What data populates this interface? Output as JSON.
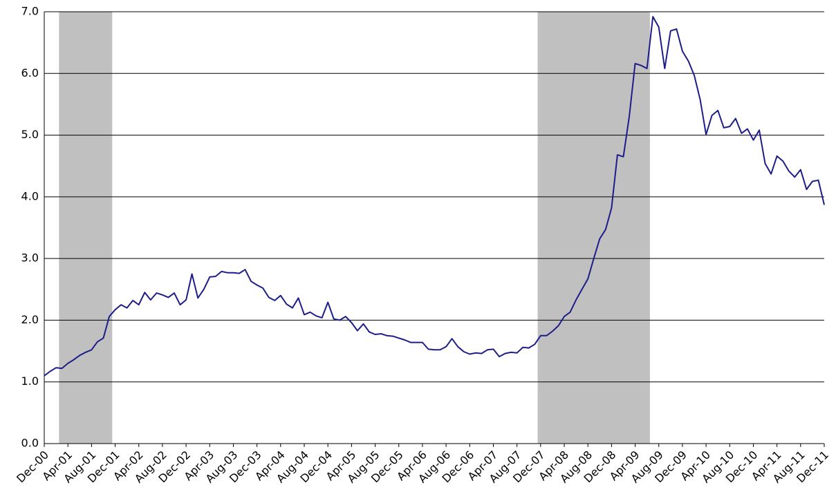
{
  "chart_data": {
    "type": "line",
    "categories": [
      "Dec-00",
      null,
      null,
      null,
      "Apr-01",
      null,
      null,
      null,
      "Aug-01",
      null,
      null,
      null,
      "Dec-01",
      null,
      null,
      null,
      "Apr-02",
      null,
      null,
      null,
      "Aug-02",
      null,
      null,
      null,
      "Dec-02",
      null,
      null,
      null,
      "Apr-03",
      null,
      null,
      null,
      "Aug-03",
      null,
      null,
      null,
      "Dec-03",
      null,
      null,
      null,
      "Apr-04",
      null,
      null,
      null,
      "Aug-04",
      null,
      null,
      null,
      "Dec-04",
      null,
      null,
      null,
      "Apr-05",
      null,
      null,
      null,
      "Aug-05",
      null,
      null,
      null,
      "Dec-05",
      null,
      null,
      null,
      "Apr-06",
      null,
      null,
      null,
      "Aug-06",
      null,
      null,
      null,
      "Dec-06",
      null,
      null,
      null,
      "Apr-07",
      null,
      null,
      null,
      "Aug-07",
      null,
      null,
      null,
      "Dec-07",
      null,
      null,
      null,
      "Apr-08",
      null,
      null,
      null,
      "Aug-08",
      null,
      null,
      null,
      "Dec-08",
      null,
      null,
      null,
      "Apr-09",
      null,
      null,
      null,
      "Aug-09",
      null,
      null,
      null,
      "Dec-09",
      null,
      null,
      null,
      "Apr-10",
      null,
      null,
      null,
      "Aug-10",
      null,
      null,
      null,
      "Dec-10",
      null,
      null,
      null,
      "Apr-11",
      null,
      null,
      null,
      "Aug-11",
      null,
      null,
      null,
      "Dec-11"
    ],
    "values": [
      1.1,
      1.17,
      1.23,
      1.22,
      1.3,
      1.36,
      1.43,
      1.48,
      1.52,
      1.65,
      1.71,
      2.06,
      2.17,
      2.25,
      2.2,
      2.32,
      2.25,
      2.45,
      2.33,
      2.44,
      2.41,
      2.37,
      2.44,
      2.25,
      2.33,
      2.75,
      2.36,
      2.5,
      2.7,
      2.71,
      2.79,
      2.77,
      2.77,
      2.76,
      2.82,
      2.63,
      2.57,
      2.52,
      2.37,
      2.32,
      2.4,
      2.26,
      2.2,
      2.36,
      2.09,
      2.13,
      2.07,
      2.04,
      2.29,
      2.02,
      2.0,
      2.06,
      1.96,
      1.83,
      1.94,
      1.81,
      1.77,
      1.78,
      1.75,
      1.74,
      1.71,
      1.68,
      1.64,
      1.64,
      1.64,
      1.53,
      1.52,
      1.52,
      1.57,
      1.7,
      1.57,
      1.49,
      1.45,
      1.47,
      1.46,
      1.52,
      1.53,
      1.41,
      1.46,
      1.48,
      1.47,
      1.56,
      1.55,
      1.61,
      1.75,
      1.75,
      1.82,
      1.91,
      2.06,
      2.13,
      2.33,
      2.5,
      2.67,
      3.0,
      3.32,
      3.47,
      3.82,
      4.68,
      4.65,
      5.3,
      6.16,
      6.13,
      6.08,
      6.92,
      6.75,
      6.08,
      6.69,
      6.72,
      6.36,
      6.2,
      5.97,
      5.58,
      5.01,
      5.32,
      5.4,
      5.12,
      5.14,
      5.27,
      5.03,
      5.1,
      4.92,
      5.08,
      4.54,
      4.37,
      4.66,
      4.58,
      4.42,
      4.32,
      4.44,
      4.12,
      4.25,
      4.27,
      3.87
    ],
    "color": "#1c1c8a",
    "shaded": [
      {
        "start": 3,
        "end": 11
      },
      {
        "start": 84,
        "end": 102
      }
    ],
    "shade_color": "#c0c0c0",
    "ylim": [
      0,
      7
    ],
    "yticks": [
      {
        "value": 0,
        "label": "0.0"
      },
      {
        "value": 1,
        "label": "1.0"
      },
      {
        "value": 2,
        "label": "2.0"
      },
      {
        "value": 3,
        "label": "3.0"
      },
      {
        "value": 4,
        "label": "4.0"
      },
      {
        "value": 5,
        "label": "5.0"
      },
      {
        "value": 6,
        "label": "6.0"
      },
      {
        "value": 7,
        "label": "7.0"
      }
    ],
    "grid": true
  }
}
